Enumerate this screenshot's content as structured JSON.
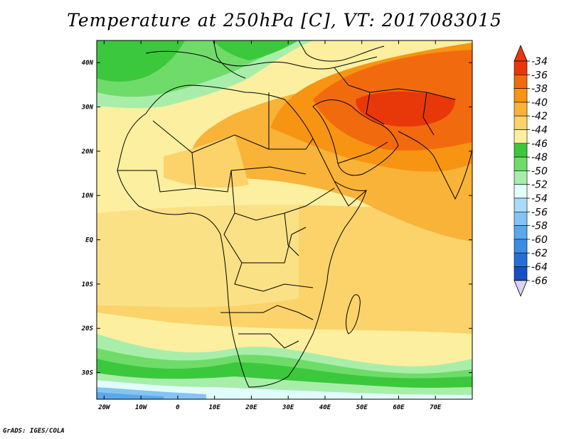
{
  "title": "Temperature at 250hPa [C], VT: 2017083015",
  "credit": "GrADS: IGES/COLA",
  "map": {
    "lon_labels": [
      "20W",
      "10W",
      "0",
      "10E",
      "20E",
      "30E",
      "40E",
      "50E",
      "60E",
      "70E"
    ],
    "lat_labels": [
      "40N",
      "30N",
      "20N",
      "10N",
      "EQ",
      "10S",
      "20S",
      "30S"
    ],
    "lon_range": [
      -22,
      80
    ],
    "lat_range": [
      -36,
      45
    ]
  },
  "colorbar": {
    "labels": [
      "-34",
      "-36",
      "-38",
      "-40",
      "-42",
      "-44",
      "-46",
      "-48",
      "-50",
      "-52",
      "-54",
      "-56",
      "-58",
      "-60",
      "-62",
      "-64",
      "-66"
    ],
    "colors": [
      "#e8380a",
      "#f26a0e",
      "#f79412",
      "#f8b338",
      "#fbd36a",
      "#fcefa0",
      "#3cc83c",
      "#6fdc6a",
      "#a8eeaa",
      "#e2fcfc",
      "#a8dcf8",
      "#84c4f4",
      "#5aa8ec",
      "#3c8ce4",
      "#2470d8",
      "#1450c0",
      "#0c1e88"
    ],
    "top_arrow_color": "#e8380a",
    "bottom_arrow_color": "#d8d4f8"
  }
}
